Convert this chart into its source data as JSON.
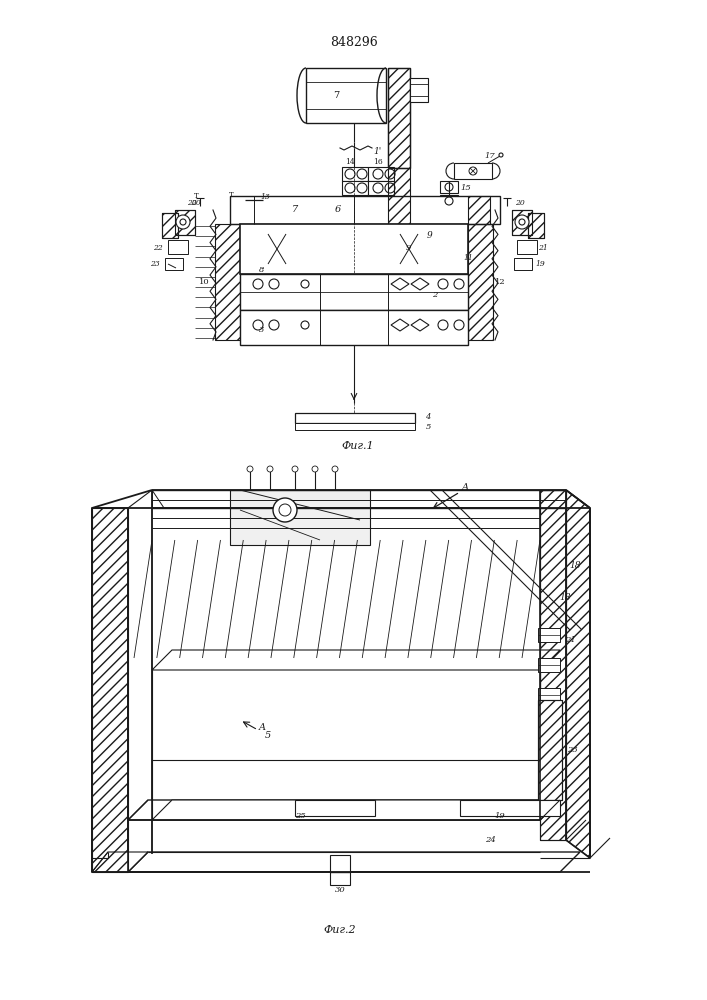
{
  "patent_number": "848296",
  "fig1_label": "Фиг.1",
  "fig2_label": "Фиг.2",
  "bg_color": "#ffffff",
  "line_color": "#1a1a1a",
  "lw": 0.8
}
